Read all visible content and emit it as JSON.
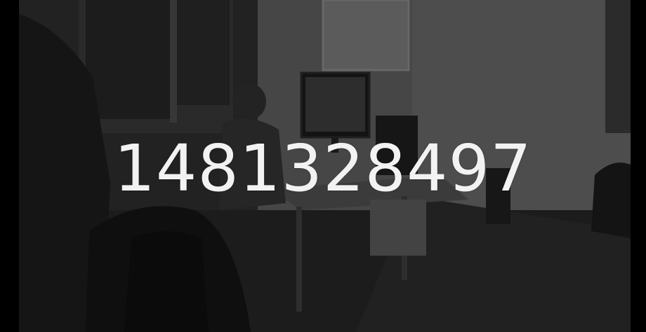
{
  "overlay": {
    "text": "1481328497"
  }
}
